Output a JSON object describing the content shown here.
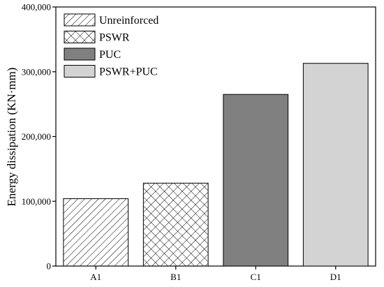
{
  "chart_data": {
    "type": "bar",
    "title": "",
    "xlabel": "",
    "ylabel": "Energy dissipation (KN·mm)",
    "categories": [
      "A1",
      "B1",
      "C1",
      "D1"
    ],
    "values": [
      104000,
      128000,
      265000,
      313000
    ],
    "ylim": [
      0,
      400000
    ],
    "yticks": [
      0,
      100000,
      200000,
      300000,
      400000
    ],
    "ytick_labels": [
      "0",
      "100,000",
      "200,000",
      "300,000",
      "400,000"
    ],
    "grid": false,
    "legend": {
      "placement": "top-left",
      "entries": [
        "Unreinforced",
        "PSWR",
        "PUC",
        "PSWR+PUC"
      ]
    },
    "bar_styles": [
      {
        "fill": "#ffffff",
        "pattern": "diagonal-hatch"
      },
      {
        "fill": "#ffffff",
        "pattern": "crosshatch"
      },
      {
        "fill": "#808080",
        "pattern": "solid"
      },
      {
        "fill": "#d3d3d3",
        "pattern": "solid"
      }
    ]
  }
}
